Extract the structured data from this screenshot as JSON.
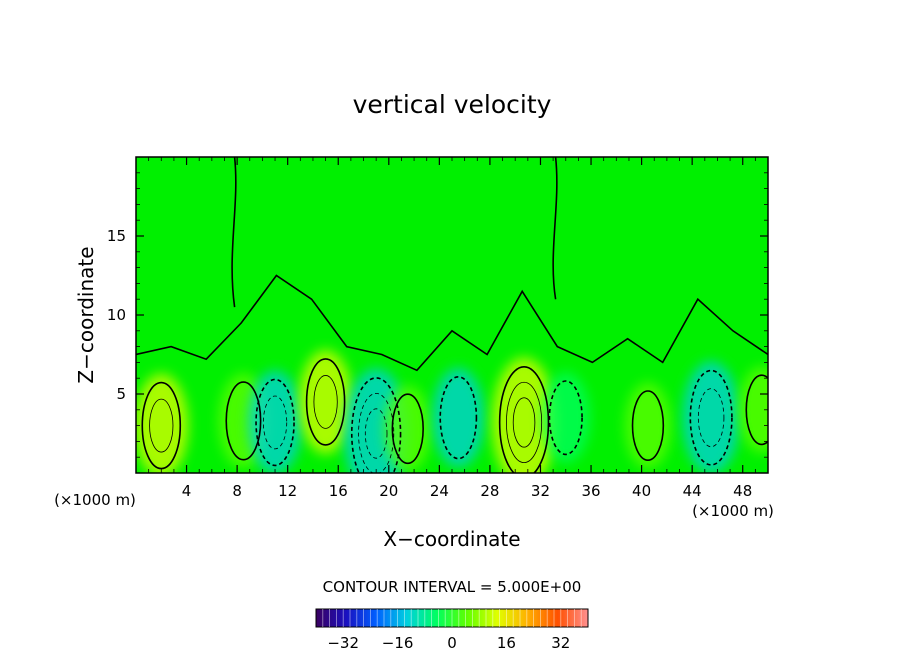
{
  "chart_data": {
    "type": "heatmap",
    "title": "vertical velocity",
    "xlabel": "X−coordinate",
    "ylabel": "Z−coordinate",
    "x_unit_left": "(×1000 m)",
    "x_unit_right": "(×1000 m)",
    "xlim": [
      0,
      50
    ],
    "ylim": [
      0,
      20
    ],
    "x_ticks": [
      4,
      8,
      12,
      16,
      20,
      24,
      28,
      32,
      36,
      40,
      44,
      48
    ],
    "y_ticks": [
      5,
      10,
      15
    ],
    "contour_interval_label": "CONTOUR INTERVAL = 5.000E+00",
    "colorbar": {
      "range": [
        -40,
        40
      ],
      "ticks": [
        -32,
        -16,
        0,
        16,
        32
      ],
      "tick_labels": [
        "−32",
        "−16",
        "0",
        "16",
        "32"
      ]
    },
    "colorscale": [
      "#3a0060",
      "#1a10c0",
      "#0060ff",
      "#00d0e0",
      "#00ff60",
      "#60ff00",
      "#e0ff00",
      "#ffb000",
      "#ff5000",
      "#ff9090"
    ],
    "background_color": "#00f000",
    "features": [
      {
        "type": "updraft",
        "x": 2,
        "z": 3,
        "w": 10
      },
      {
        "type": "updraft",
        "x": 8.5,
        "z": 3.3,
        "w": 8
      },
      {
        "type": "downdraft",
        "x": 11,
        "z": 3.2,
        "w": -10
      },
      {
        "type": "updraft",
        "x": 15,
        "z": 4.5,
        "w": 10
      },
      {
        "type": "downdraft",
        "x": 19,
        "z": 2.5,
        "w": -16
      },
      {
        "type": "updraft",
        "x": 21.5,
        "z": 2.8,
        "w": 6
      },
      {
        "type": "downdraft",
        "x": 25.5,
        "z": 3.5,
        "w": -9
      },
      {
        "type": "updraft",
        "x": 30.7,
        "z": 3.2,
        "w": 16
      },
      {
        "type": "downdraft",
        "x": 34,
        "z": 3.5,
        "w": -7
      },
      {
        "type": "updraft",
        "x": 40.5,
        "z": 3,
        "w": 6
      },
      {
        "type": "downdraft",
        "x": 45.5,
        "z": 3.5,
        "w": -12
      },
      {
        "type": "updraft",
        "x": 49.5,
        "z": 4,
        "w": 6
      }
    ]
  }
}
